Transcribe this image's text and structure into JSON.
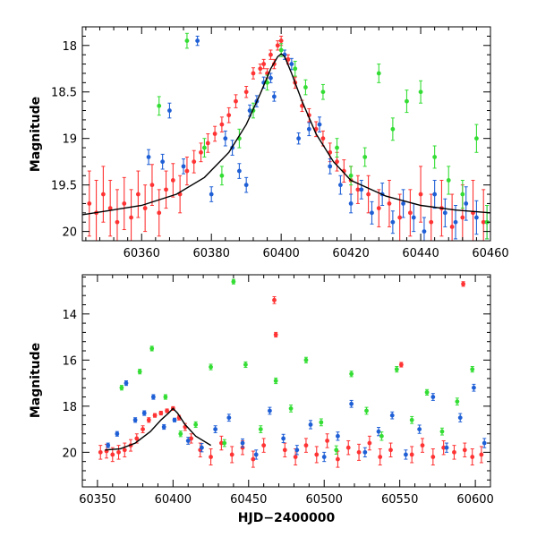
{
  "chart_data": [
    {
      "type": "scatter",
      "panel": "top",
      "xlabel": "",
      "ylabel": "Magnitude",
      "xlim": [
        60343,
        60460
      ],
      "ylim": [
        20.1,
        17.8
      ],
      "y_inverted": true,
      "xticks": [
        60360,
        60380,
        60400,
        60420,
        60440,
        60460
      ],
      "yticks": [
        18,
        18.5,
        19,
        19.5,
        20
      ],
      "xtick_labels": [
        "60360",
        "60380",
        "60400",
        "60420",
        "60440",
        "60460"
      ],
      "ytick_labels": [
        "18",
        "18.5",
        "19",
        "19.5",
        "20"
      ],
      "model_curve": {
        "color": "#000000",
        "x": [
          60343,
          60350,
          60360,
          60370,
          60378,
          60385,
          60390,
          60394,
          60397,
          60399,
          60400,
          60401,
          60403,
          60406,
          60410,
          60415,
          60420,
          60430,
          60440,
          60450,
          60460
        ],
        "y": [
          19.82,
          19.78,
          19.72,
          19.6,
          19.42,
          19.15,
          18.85,
          18.52,
          18.25,
          18.12,
          18.09,
          18.12,
          18.3,
          18.6,
          18.95,
          19.25,
          19.45,
          19.62,
          19.72,
          19.77,
          19.8
        ]
      },
      "series": [
        {
          "color": "#ff3333",
          "x": [
            60345,
            60347,
            60349,
            60351,
            60353,
            60355,
            60357,
            60359,
            60361,
            60363,
            60365,
            60367,
            60369,
            60371,
            60373,
            60375,
            60377,
            60379,
            60381,
            60383,
            60385,
            60387,
            60390,
            60392,
            60394,
            60395,
            60396,
            60397,
            60398,
            60399,
            60400,
            60402,
            60404,
            60406,
            60408,
            60410,
            60412,
            60414,
            60416,
            60418,
            60420,
            60422,
            60425,
            60428,
            60431,
            60434,
            60437,
            60440,
            60443,
            60446,
            60449,
            60452,
            60455,
            60458
          ],
          "y": [
            19.7,
            19.8,
            19.6,
            19.75,
            19.9,
            19.7,
            19.85,
            19.6,
            19.75,
            19.5,
            19.8,
            19.55,
            19.45,
            19.6,
            19.35,
            19.25,
            19.15,
            19.05,
            18.95,
            18.85,
            18.75,
            18.6,
            18.5,
            18.3,
            18.25,
            18.2,
            18.3,
            18.1,
            18.2,
            18.0,
            17.95,
            18.15,
            18.4,
            18.65,
            18.75,
            18.9,
            19.0,
            19.15,
            19.25,
            19.35,
            19.45,
            19.55,
            19.6,
            19.75,
            19.7,
            19.85,
            19.8,
            19.6,
            19.9,
            19.75,
            19.95,
            19.85,
            19.8,
            19.9
          ],
          "yerr": [
            0.35,
            0.35,
            0.3,
            0.3,
            0.35,
            0.28,
            0.3,
            0.25,
            0.25,
            0.22,
            0.25,
            0.2,
            0.18,
            0.2,
            0.15,
            0.12,
            0.1,
            0.1,
            0.08,
            0.08,
            0.08,
            0.07,
            0.06,
            0.06,
            0.05,
            0.05,
            0.05,
            0.05,
            0.05,
            0.05,
            0.05,
            0.05,
            0.06,
            0.06,
            0.07,
            0.08,
            0.08,
            0.1,
            0.1,
            0.12,
            0.15,
            0.15,
            0.2,
            0.2,
            0.25,
            0.25,
            0.25,
            0.3,
            0.3,
            0.3,
            0.35,
            0.35,
            0.35,
            0.35
          ]
        },
        {
          "color": "#1f5fd6",
          "x": [
            60362,
            60366,
            60368,
            60372,
            60376,
            60380,
            60384,
            60386,
            60388,
            60390,
            60391,
            60393,
            60395,
            60397,
            60398,
            60401,
            60403,
            60405,
            60408,
            60411,
            60414,
            60417,
            60420,
            60423,
            60426,
            60429,
            60432,
            60435,
            60438,
            60441,
            60444,
            60447,
            60450,
            60453,
            60456,
            60459
          ],
          "y": [
            19.2,
            19.25,
            18.7,
            19.3,
            17.95,
            19.6,
            19.0,
            19.1,
            19.35,
            19.5,
            18.7,
            18.6,
            18.4,
            18.35,
            18.55,
            18.1,
            18.2,
            19.0,
            18.9,
            18.85,
            19.3,
            19.5,
            19.7,
            19.55,
            19.8,
            19.6,
            19.9,
            19.7,
            19.85,
            20.0,
            19.6,
            19.8,
            19.9,
            19.7,
            19.85,
            19.9
          ],
          "yerr": [
            0.08,
            0.08,
            0.08,
            0.08,
            0.05,
            0.08,
            0.08,
            0.08,
            0.08,
            0.08,
            0.06,
            0.06,
            0.06,
            0.05,
            0.05,
            0.05,
            0.06,
            0.06,
            0.07,
            0.08,
            0.08,
            0.1,
            0.1,
            0.1,
            0.12,
            0.12,
            0.12,
            0.15,
            0.15,
            0.15,
            0.15,
            0.15,
            0.18,
            0.18,
            0.18,
            0.18
          ]
        },
        {
          "color": "#33dd33",
          "x": [
            60365,
            60373,
            60378,
            60383,
            60388,
            60392,
            60396,
            60400,
            60404,
            60407,
            60412,
            60416,
            60420,
            60424,
            60428,
            60432,
            60436,
            60440,
            60444,
            60448,
            60452,
            60456,
            60459
          ],
          "y": [
            18.65,
            17.95,
            19.1,
            19.4,
            19.0,
            18.7,
            18.4,
            18.05,
            18.25,
            18.45,
            18.5,
            19.1,
            19.4,
            19.2,
            18.3,
            18.9,
            18.6,
            18.5,
            19.2,
            19.45,
            19.6,
            19.0,
            19.9
          ],
          "yerr": [
            0.1,
            0.08,
            0.1,
            0.1,
            0.1,
            0.08,
            0.08,
            0.07,
            0.08,
            0.08,
            0.08,
            0.1,
            0.1,
            0.1,
            0.1,
            0.12,
            0.12,
            0.12,
            0.12,
            0.15,
            0.15,
            0.15,
            0.18
          ]
        }
      ]
    },
    {
      "type": "scatter",
      "panel": "bottom",
      "xlabel": "HJD−2400000",
      "ylabel": "Magnitude",
      "xlim": [
        60340,
        60610
      ],
      "ylim": [
        21.5,
        12.3
      ],
      "y_inverted": true,
      "xticks": [
        60350,
        60400,
        60450,
        60500,
        60550,
        60600
      ],
      "yticks": [
        14,
        16,
        18,
        20
      ],
      "xtick_labels": [
        "60350",
        "60400",
        "60450",
        "60500",
        "60550",
        "60600"
      ],
      "ytick_labels": [
        "14",
        "16",
        "18",
        "20"
      ],
      "model_curve": {
        "color": "#000000",
        "x": [
          60355,
          60365,
          60375,
          60385,
          60392,
          60397,
          60400,
          60403,
          60408,
          60415,
          60425
        ],
        "y": [
          19.9,
          19.85,
          19.6,
          19.1,
          18.6,
          18.3,
          18.1,
          18.3,
          18.8,
          19.3,
          19.7
        ]
      },
      "series": [
        {
          "color": "#ff3333",
          "x": [
            60352,
            60356,
            60360,
            60364,
            60368,
            60372,
            60376,
            60380,
            60384,
            60388,
            60392,
            60396,
            60400,
            60404,
            60408,
            60412,
            60418,
            60425,
            60432,
            60439,
            60446,
            60453,
            60460,
            60467,
            60468,
            60474,
            60481,
            60488,
            60495,
            60502,
            60509,
            60516,
            60523,
            60530,
            60537,
            60544,
            60551,
            60558,
            60565,
            60572,
            60579,
            60586,
            60592,
            60593,
            60598,
            60604
          ],
          "y": [
            20.0,
            19.95,
            20.1,
            20.0,
            19.9,
            19.7,
            19.4,
            19.0,
            18.6,
            18.4,
            18.3,
            18.2,
            18.1,
            18.5,
            18.9,
            19.4,
            19.9,
            20.2,
            19.6,
            20.1,
            19.8,
            20.3,
            19.7,
            13.4,
            14.9,
            19.9,
            20.2,
            19.7,
            20.1,
            19.5,
            20.3,
            19.8,
            20.0,
            19.6,
            20.2,
            19.9,
            16.2,
            20.1,
            19.7,
            20.2,
            19.8,
            20.0,
            12.7,
            19.9,
            20.2,
            20.1
          ],
          "yerr": [
            0.3,
            0.3,
            0.3,
            0.3,
            0.3,
            0.25,
            0.2,
            0.15,
            0.1,
            0.08,
            0.08,
            0.08,
            0.08,
            0.1,
            0.15,
            0.2,
            0.3,
            0.35,
            0.3,
            0.35,
            0.3,
            0.35,
            0.3,
            0.15,
            0.1,
            0.3,
            0.35,
            0.3,
            0.35,
            0.3,
            0.35,
            0.3,
            0.35,
            0.3,
            0.35,
            0.3,
            0.1,
            0.35,
            0.3,
            0.35,
            0.3,
            0.3,
            0.1,
            0.3,
            0.35,
            0.35
          ]
        },
        {
          "color": "#1f5fd6",
          "x": [
            60357,
            60363,
            60369,
            60375,
            60381,
            60387,
            60394,
            60401,
            60410,
            60419,
            60428,
            60437,
            60446,
            60455,
            60464,
            60473,
            60482,
            60491,
            60500,
            60509,
            60518,
            60527,
            60536,
            60545,
            60554,
            60563,
            60572,
            60581,
            60590,
            60599,
            60606
          ],
          "y": [
            19.7,
            19.2,
            17.0,
            18.6,
            18.3,
            17.6,
            18.9,
            18.6,
            19.5,
            19.8,
            19.0,
            18.5,
            19.6,
            20.1,
            18.2,
            19.4,
            19.9,
            18.8,
            20.2,
            19.3,
            17.9,
            20.0,
            19.1,
            18.4,
            20.1,
            19.0,
            17.6,
            19.8,
            18.5,
            17.2,
            19.6
          ],
          "yerr": [
            0.1,
            0.1,
            0.1,
            0.1,
            0.1,
            0.1,
            0.1,
            0.08,
            0.15,
            0.18,
            0.15,
            0.15,
            0.18,
            0.2,
            0.15,
            0.18,
            0.2,
            0.18,
            0.2,
            0.18,
            0.15,
            0.2,
            0.18,
            0.15,
            0.2,
            0.18,
            0.15,
            0.2,
            0.18,
            0.15,
            0.2
          ]
        },
        {
          "color": "#33dd33",
          "x": [
            60366,
            60378,
            60386,
            60395,
            60405,
            60415,
            60425,
            60434,
            60440,
            60448,
            60458,
            60468,
            60478,
            60488,
            60498,
            60508,
            60518,
            60528,
            60538,
            60548,
            60558,
            60568,
            60578,
            60588,
            60598
          ],
          "y": [
            17.2,
            16.5,
            15.5,
            17.6,
            19.2,
            18.8,
            16.3,
            19.6,
            12.6,
            16.2,
            19.0,
            16.9,
            18.1,
            16.0,
            18.7,
            19.9,
            16.6,
            18.2,
            19.3,
            16.4,
            18.6,
            17.4,
            19.1,
            17.8,
            16.4
          ],
          "yerr": [
            0.1,
            0.1,
            0.1,
            0.1,
            0.12,
            0.12,
            0.12,
            0.15,
            0.1,
            0.12,
            0.15,
            0.12,
            0.15,
            0.12,
            0.15,
            0.18,
            0.12,
            0.15,
            0.18,
            0.12,
            0.15,
            0.12,
            0.15,
            0.15,
            0.12
          ]
        }
      ]
    }
  ]
}
